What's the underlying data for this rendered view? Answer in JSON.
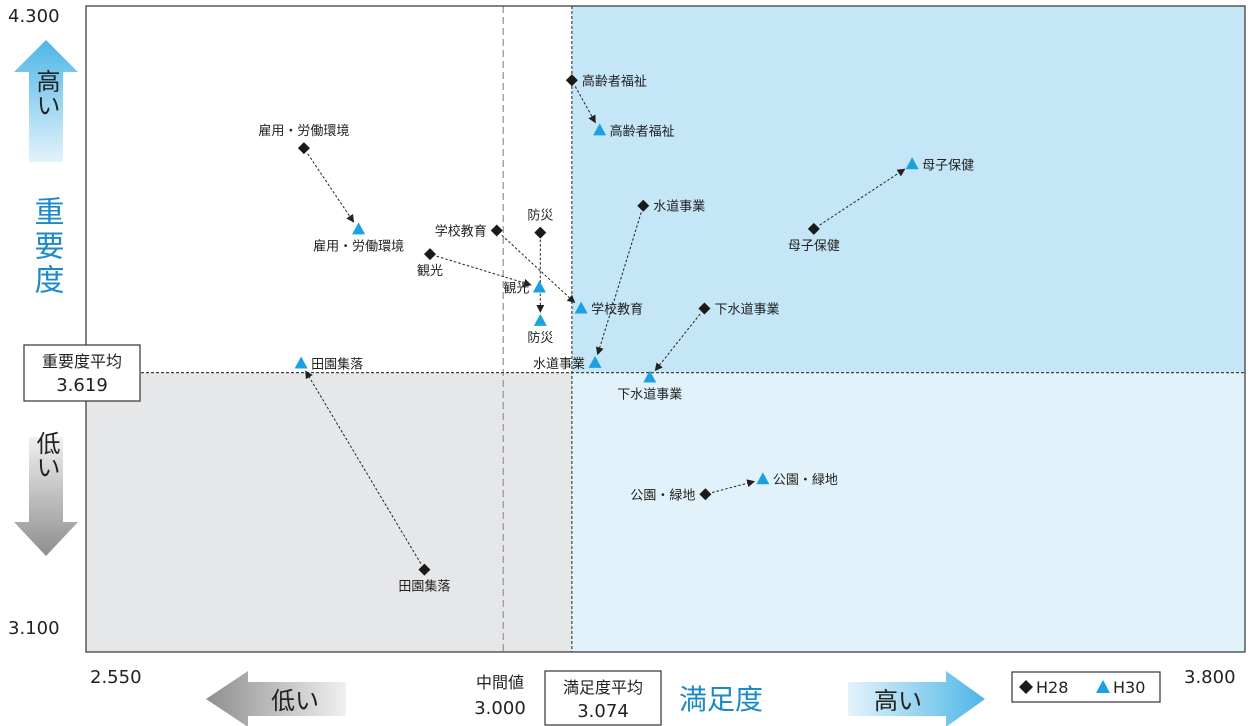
{
  "chart_data": {
    "type": "scatter",
    "xlabel": "満足度",
    "ylabel": "重要度",
    "xlim": [
      2.55,
      3.8
    ],
    "ylim": [
      3.1,
      4.3
    ],
    "x_tick_labels": [
      "2.550",
      "3.800"
    ],
    "y_tick_labels": [
      "4.300",
      "3.100"
    ],
    "x_reference": {
      "label": "中間値",
      "value_text": "3.000",
      "value": 3.0
    },
    "x_mean": {
      "label": "満足度平均",
      "value_text": "3.074",
      "value": 3.074
    },
    "y_mean": {
      "label": "重要度平均",
      "value_text": "3.619",
      "value": 3.619
    },
    "series": [
      {
        "name": "H28",
        "marker": "diamond",
        "color": "#1a1a1a"
      },
      {
        "name": "H30",
        "marker": "triangle",
        "color": "#1ba1e2"
      }
    ],
    "points": [
      {
        "label": "高齢者福祉",
        "h28": [
          3.074,
          4.162
        ],
        "h30": [
          3.104,
          4.069
        ],
        "pos28": "right",
        "pos30": "right"
      },
      {
        "label": "母子保健",
        "h28": [
          3.335,
          3.886
        ],
        "h30": [
          3.441,
          4.006
        ],
        "pos28": "below",
        "pos30": "right"
      },
      {
        "label": "水道事業",
        "h28": [
          3.151,
          3.929
        ],
        "h30": [
          3.099,
          3.637
        ],
        "pos28": "right",
        "pos30": "left"
      },
      {
        "label": "雇用・労働環境",
        "h28": [
          2.785,
          4.036
        ],
        "h30": [
          2.844,
          3.885
        ],
        "pos28": "above",
        "pos30": "below"
      },
      {
        "label": "学校教育",
        "h28": [
          2.993,
          3.883
        ],
        "h30": [
          3.084,
          3.738
        ],
        "pos28": "left",
        "pos30": "right"
      },
      {
        "label": "防災",
        "h28": [
          3.04,
          3.879
        ],
        "h30": [
          3.04,
          3.715
        ],
        "pos28": "above",
        "pos30": "below"
      },
      {
        "label": "観光",
        "h28": [
          2.921,
          3.839
        ],
        "h30": [
          3.039,
          3.777
        ],
        "pos28": "below",
        "pos30": "left"
      },
      {
        "label": "下水道事業",
        "h28": [
          3.217,
          3.738
        ],
        "h30": [
          3.158,
          3.61
        ],
        "pos28": "right",
        "pos30": "below"
      },
      {
        "label": "田園集落",
        "h28": [
          2.915,
          3.253
        ],
        "h30": [
          2.782,
          3.636
        ],
        "pos28": "below",
        "pos30": "right"
      },
      {
        "label": "公園・緑地",
        "h28": [
          3.218,
          3.393
        ],
        "h30": [
          3.28,
          3.421
        ],
        "pos28": "left",
        "pos30": "right"
      }
    ]
  },
  "arrows": {
    "up_high": "高い",
    "down_low": "低い",
    "left_low": "低い",
    "right_high": "高い"
  },
  "legend": {
    "h28": "H28",
    "h30": "H30"
  },
  "colors": {
    "quad_top_right": "#c5e6f6",
    "quad_bottom_right": "#e1f2fa",
    "quad_bottom_left": "#e6e7e8",
    "title_blue": "#1b8ac7",
    "h30_blue": "#1ba1e2",
    "arrow_blue": "#5bbde9",
    "arrow_grey": "#9a9a9a"
  }
}
